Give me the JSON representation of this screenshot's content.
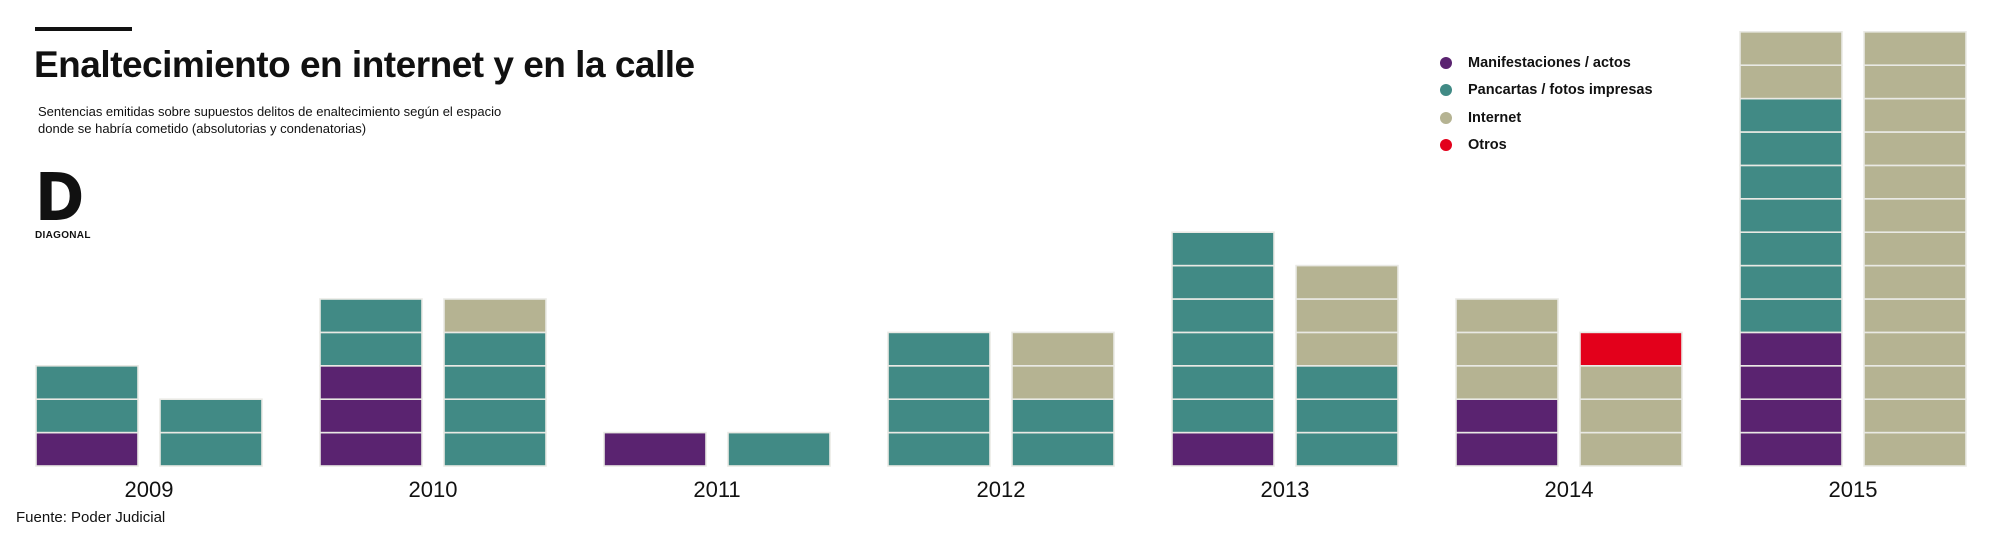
{
  "header": {
    "title": "Enaltecimiento en internet y en la calle",
    "subtitle": "Sentencias emitidas sobre supuestos delitos de enaltecimiento según el espacio donde se habría cometido (absolutorias y condenatorias)"
  },
  "logo": {
    "letter": "D",
    "word": "DIAGONAL"
  },
  "footer": {
    "source": "Fuente: Poder Judicial"
  },
  "colors": {
    "Manifestaciones / actos": "#5a2370",
    "Pancartas / fotos impresas": "#418a85",
    "Internet": "#b5b392",
    "Otros": "#e3001b"
  },
  "chart_data": {
    "type": "bar",
    "stacked": true,
    "title": "Enaltecimiento en internet y en la calle",
    "unit_note": "each segment = 1 sentencia",
    "categories": [
      "2009",
      "2010",
      "2011",
      "2012",
      "2013",
      "2014",
      "2015"
    ],
    "series_order": [
      "Manifestaciones / actos",
      "Pancartas / fotos impresas",
      "Internet",
      "Otros"
    ],
    "legend": [
      "Manifestaciones / actos",
      "Pancartas / fotos impresas",
      "Internet",
      "Otros"
    ],
    "legend_position": "top-right",
    "bars": [
      {
        "year": "2009",
        "Manifestaciones / actos": 1,
        "Pancartas / fotos impresas": 2,
        "Internet": 0,
        "Otros": 0
      },
      {
        "year": "2009",
        "Manifestaciones / actos": 0,
        "Pancartas / fotos impresas": 2,
        "Internet": 0,
        "Otros": 0
      },
      {
        "year": "2010",
        "Manifestaciones / actos": 3,
        "Pancartas / fotos impresas": 2,
        "Internet": 0,
        "Otros": 0
      },
      {
        "year": "2010",
        "Manifestaciones / actos": 0,
        "Pancartas / fotos impresas": 4,
        "Internet": 1,
        "Otros": 0
      },
      {
        "year": "2011",
        "Manifestaciones / actos": 1,
        "Pancartas / fotos impresas": 0,
        "Internet": 0,
        "Otros": 0
      },
      {
        "year": "2011",
        "Manifestaciones / actos": 0,
        "Pancartas / fotos impresas": 1,
        "Internet": 0,
        "Otros": 0
      },
      {
        "year": "2012",
        "Manifestaciones / actos": 0,
        "Pancartas / fotos impresas": 4,
        "Internet": 0,
        "Otros": 0
      },
      {
        "year": "2012",
        "Manifestaciones / actos": 0,
        "Pancartas / fotos impresas": 2,
        "Internet": 2,
        "Otros": 0
      },
      {
        "year": "2013",
        "Manifestaciones / actos": 1,
        "Pancartas / fotos impresas": 6,
        "Internet": 0,
        "Otros": 0
      },
      {
        "year": "2013",
        "Manifestaciones / actos": 0,
        "Pancartas / fotos impresas": 3,
        "Internet": 3,
        "Otros": 0
      },
      {
        "year": "2014",
        "Manifestaciones / actos": 2,
        "Pancartas / fotos impresas": 0,
        "Internet": 3,
        "Otros": 0
      },
      {
        "year": "2014",
        "Manifestaciones / actos": 0,
        "Pancartas / fotos impresas": 0,
        "Internet": 3,
        "Otros": 1
      },
      {
        "year": "2015",
        "Manifestaciones / actos": 4,
        "Pancartas / fotos impresas": 7,
        "Internet": 2,
        "Otros": 0
      },
      {
        "year": "2015",
        "Manifestaciones / actos": 0,
        "Pancartas / fotos impresas": 0,
        "Internet": 13,
        "Otros": 0
      }
    ],
    "grid": false
  }
}
